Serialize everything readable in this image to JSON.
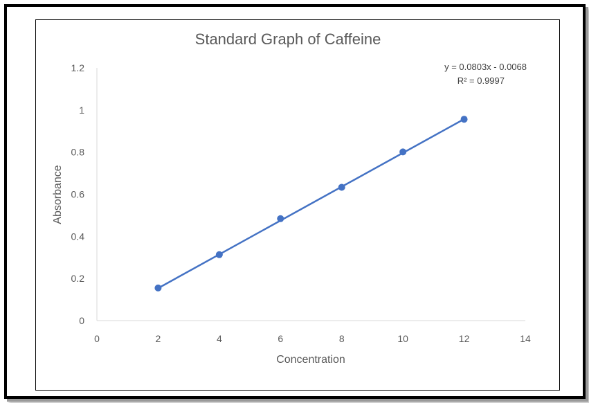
{
  "chart_data": {
    "type": "scatter",
    "title": "Standard Graph of Caffeine",
    "xlabel": "Concentration",
    "ylabel": "Absorbance",
    "xlim": [
      0,
      14
    ],
    "ylim": [
      0,
      1.2
    ],
    "x_ticks": [
      "0",
      "2",
      "4",
      "6",
      "8",
      "10",
      "12",
      "14"
    ],
    "y_ticks": [
      "0",
      "0.2",
      "0.4",
      "0.6",
      "0.8",
      "1",
      "1.2"
    ],
    "grid": false,
    "legend": "none",
    "series": [
      {
        "x": [
          2,
          4,
          6,
          8,
          10,
          12
        ],
        "y": [
          0.155,
          0.313,
          0.484,
          0.633,
          0.801,
          0.956
        ],
        "color": "#4472c4"
      }
    ],
    "trendline": {
      "type": "linear",
      "slope": 0.0803,
      "intercept": -0.0068,
      "equation": "y = 0.0803x - 0.0068",
      "r_squared": "R² = 0.9997",
      "color": "#4472c4"
    }
  }
}
